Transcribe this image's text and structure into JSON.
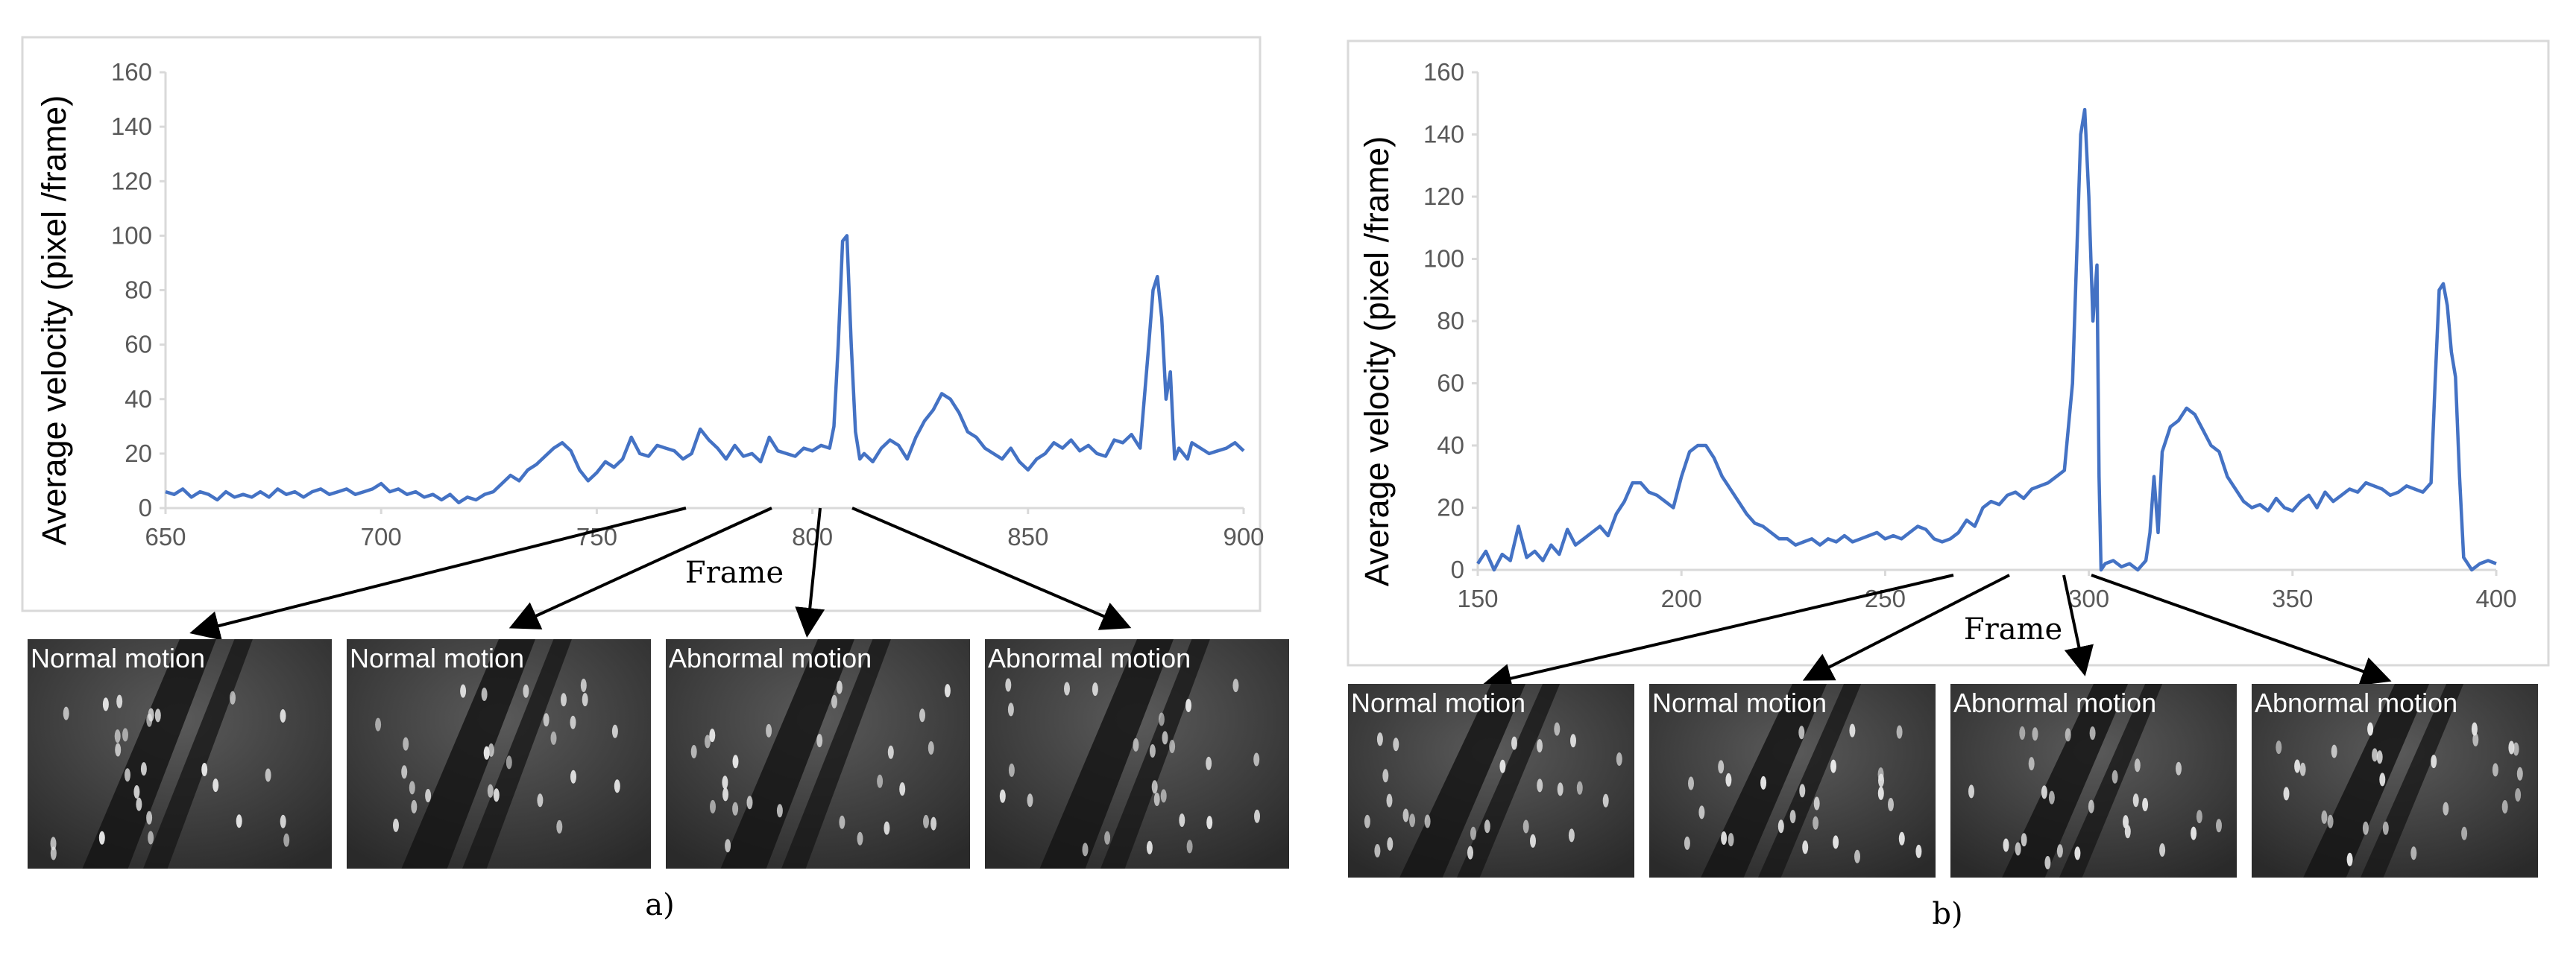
{
  "chart_data": [
    {
      "type": "line",
      "panel_label": "a)",
      "xlabel": "Frame",
      "ylabel": "Average  velocity (pixel /frame)",
      "xlim": [
        650,
        900
      ],
      "ylim": [
        0,
        160
      ],
      "x_ticks": [
        "650",
        "700",
        "750",
        "800",
        "850",
        "900"
      ],
      "y_ticks": [
        "0",
        "20",
        "40",
        "60",
        "80",
        "100",
        "120",
        "140",
        "160"
      ],
      "grid": false,
      "series_color": "#4472C4",
      "series": [
        {
          "x": [
            650,
            652,
            654,
            656,
            658,
            660,
            662,
            664,
            666,
            668,
            670,
            672,
            674,
            676,
            678,
            680,
            682,
            684,
            686,
            688,
            690,
            692,
            694,
            696,
            698,
            700,
            702,
            704,
            706,
            708,
            710,
            712,
            714,
            716,
            718,
            720,
            722,
            724,
            726,
            728,
            730,
            732,
            734,
            736,
            738,
            740,
            742,
            744,
            746,
            748,
            750,
            752,
            754,
            756,
            758,
            760,
            762,
            764,
            766,
            768,
            770,
            772,
            774,
            776,
            778,
            780,
            782,
            784,
            786,
            788,
            790,
            792,
            794,
            796,
            798,
            800,
            802,
            804,
            805,
            806,
            807,
            808,
            809,
            810,
            811,
            812,
            814,
            816,
            818,
            820,
            822,
            824,
            826,
            828,
            830,
            832,
            834,
            836,
            838,
            840,
            842,
            844,
            846,
            848,
            850,
            852,
            854,
            856,
            858,
            860,
            862,
            864,
            866,
            868,
            870,
            872,
            874,
            876,
            878,
            879,
            880,
            881,
            882,
            883,
            884,
            885,
            886,
            887,
            888,
            890,
            892,
            894,
            896,
            898,
            900
          ],
          "y": [
            6,
            5,
            7,
            4,
            6,
            5,
            3,
            6,
            4,
            5,
            4,
            6,
            4,
            7,
            5,
            6,
            4,
            6,
            7,
            5,
            6,
            7,
            5,
            6,
            7,
            9,
            6,
            7,
            5,
            6,
            4,
            5,
            3,
            5,
            2,
            4,
            3,
            5,
            6,
            9,
            12,
            10,
            14,
            16,
            19,
            22,
            24,
            21,
            14,
            10,
            13,
            17,
            15,
            18,
            26,
            20,
            19,
            23,
            22,
            21,
            18,
            20,
            29,
            25,
            22,
            18,
            23,
            19,
            20,
            17,
            26,
            21,
            20,
            19,
            22,
            21,
            23,
            22,
            30,
            60,
            98,
            100,
            60,
            28,
            18,
            20,
            17,
            22,
            25,
            23,
            18,
            26,
            32,
            36,
            42,
            40,
            35,
            28,
            26,
            22,
            20,
            18,
            22,
            17,
            14,
            18,
            20,
            24,
            22,
            25,
            21,
            23,
            20,
            19,
            25,
            24,
            27,
            22,
            60,
            80,
            85,
            70,
            40,
            50,
            18,
            22,
            20,
            18,
            24,
            22,
            20,
            21,
            22,
            24,
            21
          ]
        }
      ],
      "frames": [
        {
          "label": "Normal  motion"
        },
        {
          "label": "Normal  motion"
        },
        {
          "label": "Abnormal motion"
        },
        {
          "label": "Abnormal motion"
        }
      ]
    },
    {
      "type": "line",
      "panel_label": "b)",
      "xlabel": "Frame",
      "ylabel": "Average  velocity (pixel /frame)",
      "xlim": [
        150,
        400
      ],
      "ylim": [
        0,
        160
      ],
      "x_ticks": [
        "150",
        "200",
        "250",
        "300",
        "350",
        "400"
      ],
      "y_ticks": [
        "0",
        "20",
        "40",
        "60",
        "80",
        "100",
        "120",
        "140",
        "160"
      ],
      "grid": false,
      "series_color": "#4472C4",
      "series": [
        {
          "x": [
            150,
            152,
            154,
            156,
            158,
            160,
            162,
            164,
            166,
            168,
            170,
            172,
            174,
            176,
            178,
            180,
            182,
            184,
            186,
            188,
            190,
            192,
            194,
            196,
            198,
            200,
            202,
            204,
            206,
            208,
            210,
            212,
            214,
            216,
            218,
            220,
            222,
            224,
            226,
            228,
            230,
            232,
            234,
            236,
            238,
            240,
            242,
            244,
            246,
            248,
            250,
            252,
            254,
            256,
            258,
            260,
            262,
            264,
            266,
            268,
            270,
            272,
            274,
            276,
            278,
            280,
            282,
            284,
            286,
            288,
            290,
            292,
            294,
            296,
            297,
            298,
            299,
            300,
            301,
            302,
            302.5,
            303,
            304,
            306,
            308,
            310,
            312,
            314,
            315,
            316,
            317,
            318,
            320,
            322,
            324,
            326,
            328,
            330,
            332,
            334,
            336,
            338,
            340,
            342,
            344,
            346,
            348,
            350,
            352,
            354,
            356,
            358,
            360,
            362,
            364,
            366,
            368,
            370,
            372,
            374,
            376,
            378,
            380,
            382,
            384,
            385,
            386,
            387,
            388,
            389,
            390,
            391,
            392,
            393,
            394,
            396,
            398,
            400
          ],
          "y": [
            2,
            6,
            0,
            5,
            3,
            14,
            4,
            6,
            3,
            8,
            5,
            13,
            8,
            10,
            12,
            14,
            11,
            18,
            22,
            28,
            28,
            25,
            24,
            22,
            20,
            30,
            38,
            40,
            40,
            36,
            30,
            26,
            22,
            18,
            15,
            14,
            12,
            10,
            10,
            8,
            9,
            10,
            8,
            10,
            9,
            11,
            9,
            10,
            11,
            12,
            10,
            11,
            10,
            12,
            14,
            13,
            10,
            9,
            10,
            12,
            16,
            14,
            20,
            22,
            21,
            24,
            25,
            23,
            26,
            27,
            28,
            30,
            32,
            60,
            100,
            140,
            148,
            120,
            80,
            98,
            30,
            0,
            2,
            3,
            1,
            2,
            0,
            3,
            12,
            30,
            12,
            38,
            46,
            48,
            52,
            50,
            45,
            40,
            38,
            30,
            26,
            22,
            20,
            21,
            19,
            23,
            20,
            19,
            22,
            24,
            20,
            25,
            22,
            24,
            26,
            25,
            28,
            27,
            26,
            24,
            25,
            27,
            26,
            25,
            28,
            60,
            90,
            92,
            85,
            70,
            62,
            30,
            4,
            2,
            0,
            2,
            3,
            2
          ]
        }
      ],
      "frames": [
        {
          "label": "Normal  motion"
        },
        {
          "label": "Normal  motion"
        },
        {
          "label": "Abnormal  motion"
        },
        {
          "label": "Abnormal  motion"
        }
      ]
    }
  ]
}
